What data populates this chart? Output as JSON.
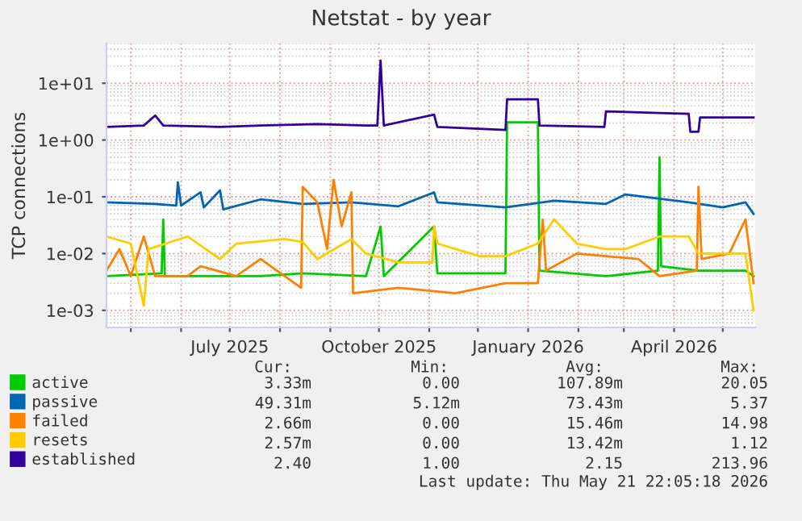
{
  "chart_data": {
    "type": "line",
    "title": "Netstat - by year",
    "ylabel": "TCP connections",
    "log": "y",
    "grid": true,
    "legend": "bottom",
    "marker": "none",
    "line_style": "solid",
    "xlim": [
      "2025-04-16",
      "2026-05-21"
    ],
    "xticks": [
      {
        "value": "2025-05-01",
        "label": null
      },
      {
        "value": "2025-06-01",
        "label": null
      },
      {
        "value": "2025-07-01",
        "label": "July 2025"
      },
      {
        "value": "2025-08-01",
        "label": null
      },
      {
        "value": "2025-09-01",
        "label": null
      },
      {
        "value": "2025-10-01",
        "label": "October 2025"
      },
      {
        "value": "2025-11-01",
        "label": null
      },
      {
        "value": "2025-12-01",
        "label": null
      },
      {
        "value": "2026-01-01",
        "label": "January 2026"
      },
      {
        "value": "2026-02-01",
        "label": null
      },
      {
        "value": "2026-03-01",
        "label": null
      },
      {
        "value": "2026-04-01",
        "label": "April 2026"
      },
      {
        "value": "2026-05-01",
        "label": null
      }
    ],
    "ylim": [
      0.0005,
      50
    ],
    "yticks": [
      {
        "value": 0.001,
        "label": "1e-03"
      },
      {
        "value": 0.01,
        "label": "1e-02"
      },
      {
        "value": 0.1,
        "label": "1e-01"
      },
      {
        "value": 1,
        "label": "1e+00"
      },
      {
        "value": 10,
        "label": "1e+01"
      }
    ],
    "series": [
      {
        "name": "active",
        "color": "#00cc00",
        "x": [
          "2025-04-16",
          "2025-05-20",
          "2025-05-21",
          "2025-05-22",
          "2025-07-20",
          "2025-08-15",
          "2025-09-23",
          "2025-10-02",
          "2025-10-04",
          "2025-11-04",
          "2025-11-06",
          "2025-12-18",
          "2025-12-19",
          "2026-01-07",
          "2026-01-08",
          "2026-02-18",
          "2026-03-22",
          "2026-03-23",
          "2026-03-24",
          "2026-04-16",
          "2026-05-15",
          "2026-05-20"
        ],
        "values": [
          0.004,
          0.0045,
          0.04,
          0.004,
          0.004,
          0.0045,
          0.004,
          0.03,
          0.004,
          0.03,
          0.0045,
          0.0045,
          2.05,
          2.05,
          0.005,
          0.004,
          0.005,
          0.5,
          0.006,
          0.005,
          0.005,
          0.004
        ]
      },
      {
        "name": "passive",
        "color": "#0066b3",
        "x": [
          "2025-04-16",
          "2025-05-16",
          "2025-05-29",
          "2025-05-30",
          "2025-06-01",
          "2025-06-13",
          "2025-06-15",
          "2025-06-25",
          "2025-06-27",
          "2025-07-20",
          "2025-08-15",
          "2025-09-14",
          "2025-10-13",
          "2025-11-04",
          "2025-11-06",
          "2025-12-18",
          "2026-01-17",
          "2026-02-18",
          "2026-03-02",
          "2026-04-10",
          "2026-05-01",
          "2026-05-15",
          "2026-05-20"
        ],
        "values": [
          0.08,
          0.075,
          0.07,
          0.18,
          0.07,
          0.12,
          0.065,
          0.13,
          0.06,
          0.09,
          0.075,
          0.08,
          0.068,
          0.12,
          0.08,
          0.065,
          0.085,
          0.075,
          0.11,
          0.08,
          0.065,
          0.08,
          0.05
        ]
      },
      {
        "name": "failed",
        "color": "#ff8000",
        "x": [
          "2025-04-16",
          "2025-04-24",
          "2025-05-01",
          "2025-05-09",
          "2025-05-16",
          "2025-06-05",
          "2025-06-13",
          "2025-07-05",
          "2025-07-20",
          "2025-08-14",
          "2025-08-15",
          "2025-08-24",
          "2025-08-30",
          "2025-09-03",
          "2025-09-08",
          "2025-09-14",
          "2025-09-15",
          "2025-10-13",
          "2025-11-17",
          "2025-12-18",
          "2026-01-07",
          "2026-01-10",
          "2026-01-12",
          "2026-01-31",
          "2026-02-18",
          "2026-03-10",
          "2026-03-23",
          "2026-04-15",
          "2026-04-16",
          "2026-04-18",
          "2026-05-05",
          "2026-05-15",
          "2026-05-20"
        ],
        "values": [
          0.005,
          0.012,
          0.004,
          0.02,
          0.004,
          0.004,
          0.006,
          0.004,
          0.008,
          0.0025,
          0.15,
          0.08,
          0.012,
          0.2,
          0.03,
          0.12,
          0.002,
          0.0025,
          0.002,
          0.003,
          0.003,
          0.04,
          0.005,
          0.01,
          0.009,
          0.008,
          0.004,
          0.005,
          0.15,
          0.008,
          0.01,
          0.04,
          0.003
        ]
      },
      {
        "name": "resets",
        "color": "#ffcc00",
        "x": [
          "2025-04-16",
          "2025-05-01",
          "2025-05-09",
          "2025-05-12",
          "2025-06-05",
          "2025-06-25",
          "2025-07-05",
          "2025-08-04",
          "2025-08-15",
          "2025-08-24",
          "2025-09-14",
          "2025-09-23",
          "2025-10-13",
          "2025-11-03",
          "2025-11-04",
          "2025-11-06",
          "2025-12-02",
          "2025-12-18",
          "2026-01-07",
          "2026-01-17",
          "2026-01-31",
          "2026-02-18",
          "2026-03-02",
          "2026-03-23",
          "2026-04-10",
          "2026-04-16",
          "2026-05-15",
          "2026-05-20"
        ],
        "values": [
          0.02,
          0.015,
          0.0012,
          0.012,
          0.02,
          0.008,
          0.015,
          0.018,
          0.016,
          0.008,
          0.018,
          0.01,
          0.007,
          0.007,
          0.03,
          0.015,
          0.009,
          0.009,
          0.015,
          0.04,
          0.015,
          0.012,
          0.012,
          0.02,
          0.02,
          0.01,
          0.01,
          0.001
        ]
      },
      {
        "name": "established",
        "color": "#330099",
        "x": [
          "2025-04-16",
          "2025-05-09",
          "2025-05-16",
          "2025-05-21",
          "2025-06-25",
          "2025-07-20",
          "2025-08-24",
          "2025-09-23",
          "2025-09-30",
          "2025-10-02",
          "2025-10-04",
          "2025-11-04",
          "2025-11-06",
          "2025-12-18",
          "2025-12-19",
          "2026-01-07",
          "2026-01-08",
          "2026-02-17",
          "2026-02-18",
          "2026-03-23",
          "2026-04-10",
          "2026-04-11",
          "2026-04-16",
          "2026-04-17",
          "2026-05-20"
        ],
        "values": [
          1.7,
          1.8,
          2.7,
          1.8,
          1.7,
          1.8,
          1.9,
          1.8,
          1.8,
          25,
          1.8,
          2.8,
          1.7,
          1.5,
          5.2,
          5.2,
          1.8,
          1.7,
          3.2,
          3.0,
          2.9,
          1.4,
          1.4,
          2.5,
          2.5
        ]
      }
    ],
    "annotations": [
      "Cur:",
      "Min:",
      "Avg:",
      "Max:",
      "3.33m",
      "0.00",
      "107.89m",
      "20.05",
      "49.31m",
      "5.12m",
      "73.43m",
      "5.37",
      "2.66m",
      "0.00",
      "15.46m",
      "14.98",
      "2.57m",
      "0.00",
      "13.42m",
      "1.12",
      "2.40",
      "1.00",
      "2.15",
      "213.96",
      "Last update: Thu May 21 22:05:18 2026"
    ]
  }
}
